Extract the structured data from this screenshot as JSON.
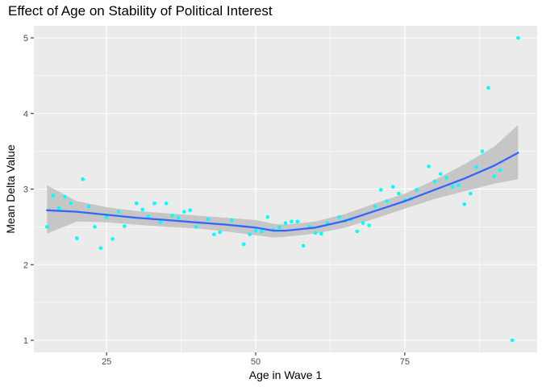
{
  "chart_data": {
    "type": "scatter",
    "title": "Effect of Age on Stability of Political Interest",
    "xlabel": "Age in Wave 1",
    "ylabel": "Mean Delta Value",
    "xlim": [
      12.8,
      97.2
    ],
    "ylim": [
      0.84,
      5.16
    ],
    "x_ticks": [
      25,
      50,
      75
    ],
    "y_ticks": [
      1,
      2,
      3,
      4,
      5
    ],
    "grid": true,
    "colors": {
      "panel": "#ebebeb",
      "grid": "#ffffff",
      "points": "#00ffff",
      "smooth_line": "#3366ff",
      "ribbon": "#bfbfbf"
    },
    "points": {
      "x": [
        15,
        16,
        17,
        18,
        19,
        20,
        21,
        22,
        23,
        24,
        25,
        26,
        27,
        28,
        30,
        31,
        32,
        33,
        34,
        35,
        36,
        37,
        38,
        39,
        40,
        42,
        43,
        44,
        46,
        48,
        49,
        50,
        51,
        52,
        53,
        54,
        55,
        56,
        57,
        58,
        59,
        60,
        61,
        62,
        64,
        65,
        66,
        67,
        68,
        69,
        70,
        71,
        72,
        73,
        74,
        75,
        76,
        77,
        79,
        80,
        81,
        82,
        83,
        84,
        85,
        86,
        87,
        88,
        89,
        90,
        91,
        93,
        94
      ],
      "y": [
        2.5,
        2.91,
        2.75,
        2.9,
        2.81,
        2.35,
        3.13,
        2.77,
        2.5,
        2.22,
        2.63,
        2.34,
        2.7,
        2.51,
        2.81,
        2.73,
        2.64,
        2.81,
        2.56,
        2.81,
        2.65,
        2.62,
        2.7,
        2.72,
        2.5,
        2.6,
        2.4,
        2.43,
        2.59,
        2.27,
        2.4,
        2.45,
        2.44,
        2.63,
        2.46,
        2.49,
        2.55,
        2.57,
        2.57,
        2.25,
        2.5,
        2.42,
        2.41,
        2.55,
        2.63,
        2.58,
        2.6,
        2.44,
        2.55,
        2.52,
        2.77,
        2.99,
        2.84,
        3.03,
        2.94,
        2.85,
        2.87,
        2.99,
        3.3,
        3.1,
        3.2,
        3.15,
        3.03,
        3.05,
        2.8,
        2.94,
        3.29,
        3.5,
        4.34,
        3.17,
        3.25,
        1.0,
        5.0
      ]
    },
    "smooth": {
      "x": [
        15,
        20,
        25,
        30,
        35,
        40,
        45,
        50,
        53,
        55,
        60,
        65,
        70,
        75,
        80,
        85,
        90,
        94
      ],
      "y": [
        2.72,
        2.7,
        2.66,
        2.62,
        2.59,
        2.56,
        2.53,
        2.49,
        2.45,
        2.45,
        2.49,
        2.58,
        2.71,
        2.84,
        2.99,
        3.14,
        3.31,
        3.48
      ],
      "lower": [
        2.41,
        2.57,
        2.56,
        2.53,
        2.5,
        2.48,
        2.44,
        2.39,
        2.36,
        2.37,
        2.41,
        2.49,
        2.61,
        2.74,
        2.87,
        2.97,
        3.07,
        3.13
      ],
      "upper": [
        3.05,
        2.84,
        2.76,
        2.71,
        2.68,
        2.65,
        2.62,
        2.59,
        2.54,
        2.53,
        2.57,
        2.67,
        2.81,
        2.94,
        3.12,
        3.33,
        3.56,
        3.85
      ]
    }
  }
}
